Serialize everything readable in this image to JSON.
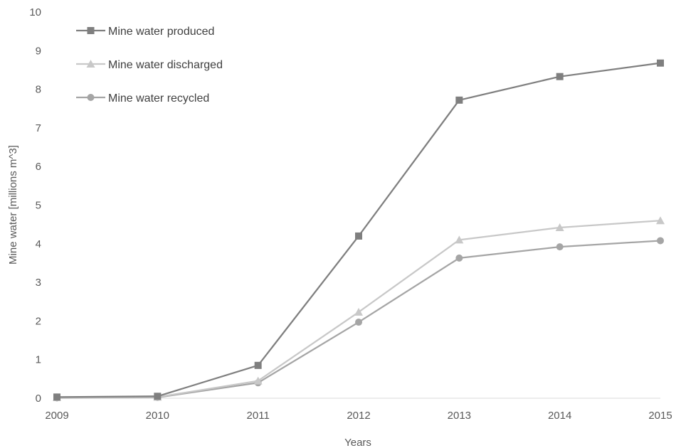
{
  "chart_data": {
    "type": "line",
    "xlabel": "Years",
    "ylabel": "Mine water [millions m^3]",
    "x": [
      "2009",
      "2010",
      "2011",
      "2012",
      "2013",
      "2014",
      "2015"
    ],
    "xlim": [
      2009,
      2015
    ],
    "ylim": [
      0,
      10
    ],
    "yticks": [
      "0",
      "1",
      "2",
      "3",
      "4",
      "5",
      "6",
      "7",
      "8",
      "9",
      "10"
    ],
    "grid": false,
    "legend_position": "top-left",
    "series": [
      {
        "name": "Mine water produced",
        "marker": "square",
        "color": "#7f7f7f",
        "values": [
          0.03,
          0.05,
          0.85,
          4.2,
          7.72,
          8.33,
          8.68
        ]
      },
      {
        "name": "Mine water discharged",
        "marker": "triangle",
        "color": "#c8c8c8",
        "values": [
          0.02,
          0.03,
          0.45,
          2.23,
          4.1,
          4.42,
          4.6
        ]
      },
      {
        "name": "Mine water recycled",
        "marker": "circle",
        "color": "#a5a5a5",
        "values": [
          0.01,
          0.02,
          0.4,
          1.97,
          3.63,
          3.92,
          4.08
        ]
      }
    ]
  }
}
